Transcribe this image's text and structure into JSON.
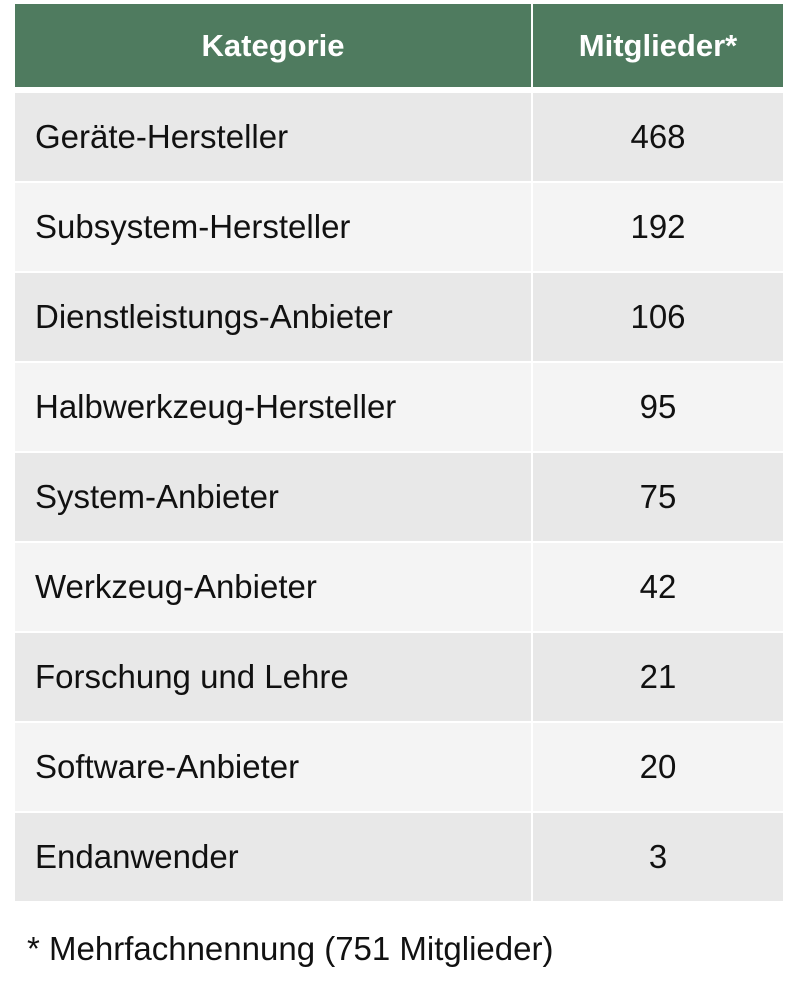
{
  "table": {
    "headers": {
      "category": "Kategorie",
      "members": "Mitglieder*"
    },
    "rows": [
      {
        "category": "Geräte-Hersteller",
        "members": "468"
      },
      {
        "category": "Subsystem-Hersteller",
        "members": "192"
      },
      {
        "category": "Dienstleistungs-Anbieter",
        "members": "106"
      },
      {
        "category": "Halbwerkzeug-Hersteller",
        "members": "95"
      },
      {
        "category": "System-Anbieter",
        "members": "75"
      },
      {
        "category": "Werkzeug-Anbieter",
        "members": "42"
      },
      {
        "category": "Forschung und Lehre",
        "members": "21"
      },
      {
        "category": "Software-Anbieter",
        "members": "20"
      },
      {
        "category": "Endanwender",
        "members": "3"
      }
    ]
  },
  "footnote": "* Mehrfachnennung (751 Mitglieder)",
  "colors": {
    "header_background": "#4f7b5f",
    "header_text": "#ffffff",
    "row_odd": "#e8e8e8",
    "row_even": "#f4f4f4"
  }
}
